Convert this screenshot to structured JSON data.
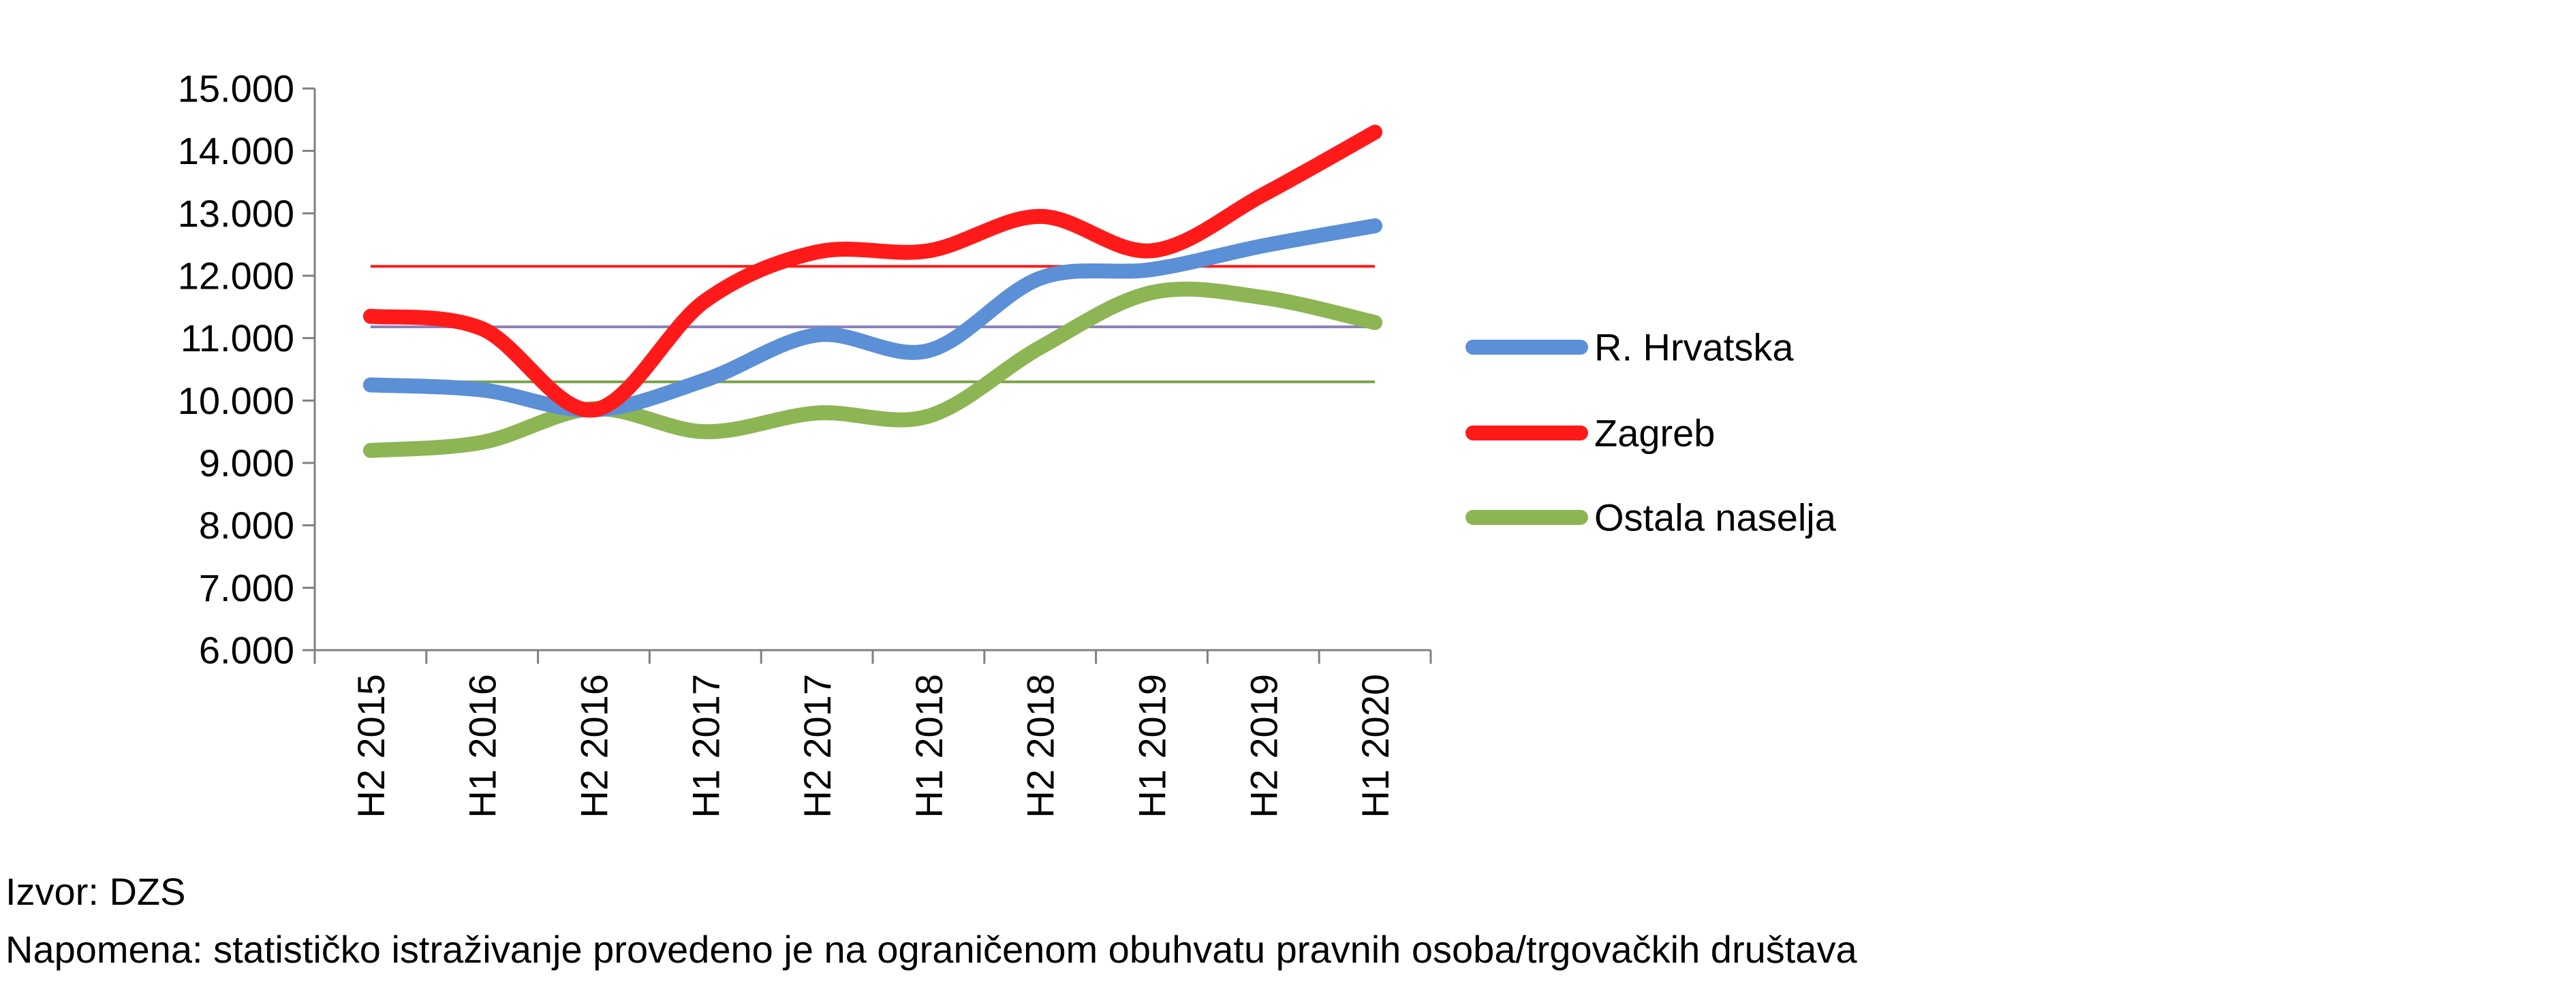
{
  "chart_data": {
    "type": "line",
    "title": "",
    "xlabel": "",
    "ylabel": "",
    "categories": [
      "H2 2015",
      "H1 2016",
      "H2 2016",
      "H1 2017",
      "H2 2017",
      "H1 2018",
      "H2 2018",
      "H1 2019",
      "H2 2019",
      "H1 2020"
    ],
    "ylim": [
      6000,
      15000
    ],
    "yticks": [
      6000,
      7000,
      8000,
      9000,
      10000,
      11000,
      12000,
      13000,
      14000,
      15000
    ],
    "ytick_labels": [
      "6.000",
      "7.000",
      "8.000",
      "9.000",
      "10.000",
      "11.000",
      "12.000",
      "13.000",
      "14.000",
      "15.000"
    ],
    "grid": false,
    "legend_position": "right",
    "series": [
      {
        "name": "R. Hrvatska",
        "color": "#5B8FD6",
        "values": [
          10250,
          10170,
          9850,
          10330,
          11050,
          10800,
          11960,
          12100,
          12480,
          12800
        ]
      },
      {
        "name": "Zagreb",
        "color": "#FF1A1A",
        "values": [
          11350,
          11150,
          9850,
          11600,
          12380,
          12400,
          12950,
          12400,
          13300,
          14300
        ]
      },
      {
        "name": "Ostala naselja",
        "color": "#8DB554",
        "values": [
          9200,
          9330,
          9870,
          9500,
          9800,
          9750,
          10850,
          11730,
          11650,
          11250
        ]
      }
    ],
    "average_lines": [
      {
        "series": "Zagreb",
        "value": 12150,
        "color": "#FF1A1A"
      },
      {
        "series": "R. Hrvatska",
        "value": 11180,
        "color": "#8B7FB8"
      },
      {
        "series": "Ostala naselja",
        "value": 10300,
        "color": "#7BA34A"
      }
    ]
  },
  "notes": {
    "source": "Izvor: DZS",
    "remark": "Napomena: statističko istraživanje provedeno je na ograničenom obuhvatu pravnih osoba/trgovačkih društava"
  }
}
